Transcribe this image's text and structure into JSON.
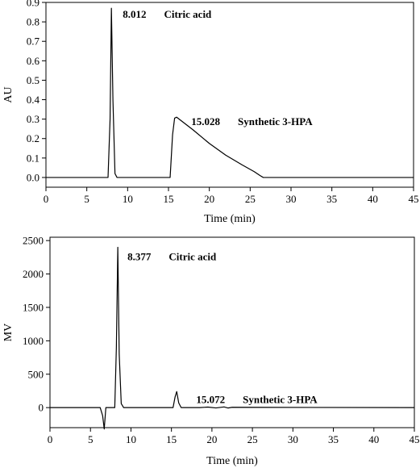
{
  "chart_data": [
    {
      "type": "line",
      "xlabel": "Time (min)",
      "ylabel": "AU",
      "xlim": [
        0,
        45
      ],
      "ylim": [
        -0.05,
        0.9
      ],
      "x_ticks": [
        "0",
        "5",
        "10",
        "15",
        "20",
        "25",
        "30",
        "35",
        "40",
        "45"
      ],
      "y_ticks": [
        "0.0",
        "0.1",
        "0.2",
        "0.3",
        "0.4",
        "0.5",
        "0.6",
        "0.7",
        "0.8",
        "0.9"
      ],
      "grid": false,
      "series": [
        {
          "x": [
            0,
            7.6,
            7.85,
            8.012,
            8.2,
            8.45,
            8.7,
            15.2,
            15.5,
            15.75,
            16.0,
            18.0,
            20.0,
            22.0,
            24.0,
            25.5,
            26.2,
            26.6,
            45
          ],
          "y": [
            0.0,
            0.0,
            0.3,
            0.87,
            0.4,
            0.02,
            0.0,
            0.0,
            0.22,
            0.305,
            0.31,
            0.245,
            0.175,
            0.115,
            0.065,
            0.03,
            0.01,
            0.0,
            0.0
          ]
        }
      ],
      "annotations": [
        {
          "time": "8.012",
          "label": "Citric acid",
          "x": 8.012,
          "y": 0.87
        },
        {
          "time": "15.028",
          "label": "Synthetic 3-HPA",
          "x": 15.028,
          "y": 0.31
        }
      ]
    },
    {
      "type": "line",
      "xlabel": "Time (min)",
      "ylabel": "MV",
      "xlim": [
        0,
        45
      ],
      "ylim": [
        -300,
        2550
      ],
      "x_ticks": [
        "0",
        "5",
        "10",
        "15",
        "20",
        "25",
        "30",
        "35",
        "40",
        "45"
      ],
      "y_ticks": [
        "0",
        "500",
        "1000",
        "1500",
        "2000",
        "2500"
      ],
      "grid": false,
      "series": [
        {
          "x": [
            0,
            6.2,
            6.5,
            6.7,
            6.9,
            8.0,
            8.2,
            8.377,
            8.55,
            8.8,
            9.1,
            15.2,
            15.45,
            15.65,
            15.9,
            16.2,
            18.5,
            19.5,
            20.5,
            21.5,
            22.0,
            22.5,
            45
          ],
          "y": [
            0,
            0,
            -120,
            -320,
            0,
            0,
            900,
            2400,
            800,
            60,
            0,
            0,
            160,
            240,
            70,
            0,
            0,
            8,
            -5,
            10,
            -6,
            5,
            0
          ]
        }
      ],
      "annotations": [
        {
          "time": "8.377",
          "label": "Citric acid",
          "x": 8.377,
          "y": 2400
        },
        {
          "time": "15.072",
          "label": "Synthetic 3-HPA",
          "x": 15.072,
          "y": 240
        }
      ]
    }
  ]
}
